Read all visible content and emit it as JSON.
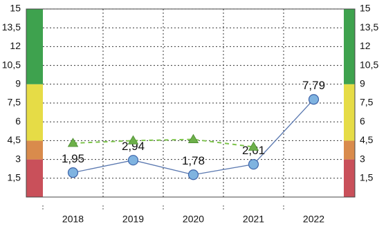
{
  "chart_data": {
    "type": "line",
    "categories": [
      "2018",
      "2019",
      "2020",
      "2021",
      "2022"
    ],
    "series": [
      {
        "color": "#7fb3e0",
        "line_color": "#5a78b0",
        "marker": "circle",
        "dashed": false,
        "values": [
          1.95,
          2.94,
          1.78,
          2.61,
          7.79
        ],
        "value_labels": [
          "1,95",
          "2,94",
          "1,78",
          "2,61",
          "7,79"
        ]
      },
      {
        "color": "#6db04a",
        "line_color": "#7cc44a",
        "marker": "triangle",
        "dashed": true,
        "values": [
          4.3,
          4.5,
          4.6,
          4.0,
          null
        ]
      }
    ],
    "ylim": [
      0,
      15
    ],
    "yticks": [
      1.5,
      3,
      4.5,
      6,
      7.5,
      9,
      10.5,
      12,
      13.5,
      15
    ],
    "ytick_labels_override": null,
    "bands": [
      {
        "from": 0,
        "to": 3,
        "color": "#c9505a"
      },
      {
        "from": 3,
        "to": 4.5,
        "color": "#d98b4c"
      },
      {
        "from": 4.5,
        "to": 9,
        "color": "#e6dc46"
      },
      {
        "from": 9,
        "to": 15,
        "color": "#3ea24e"
      }
    ],
    "grid": true
  }
}
